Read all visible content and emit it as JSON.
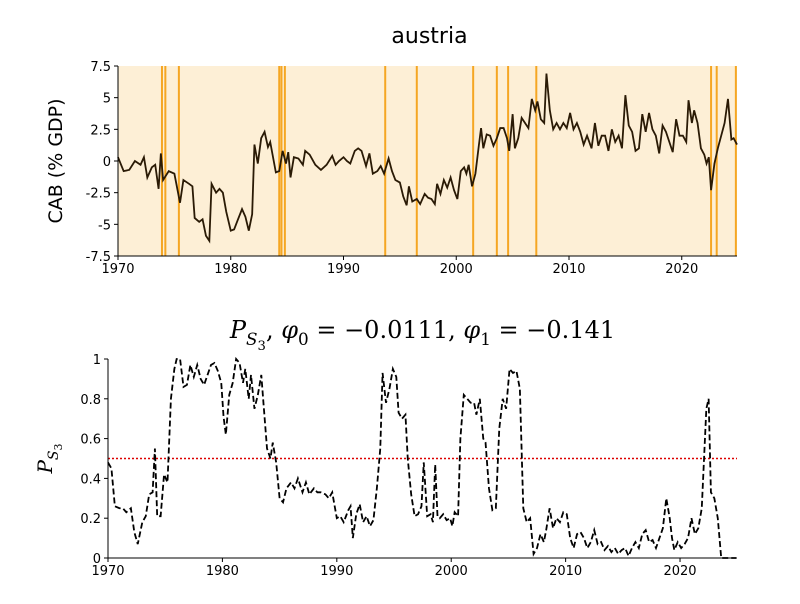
{
  "chart_data": [
    {
      "type": "line",
      "title": "austria",
      "ylabel": "CAB (% GDP)",
      "background": "#fdefd6",
      "vertical_lines": {
        "color": "#f5a623",
        "x": [
          1973.9,
          1974.2,
          1975.4,
          1984.3,
          1984.5,
          1984.8,
          1993.7,
          1996.5,
          2001.5,
          2003.6,
          2004.6,
          2007.1,
          2022.6,
          2023.1,
          2024.8
        ]
      },
      "xlim": [
        1970,
        2024.9
      ],
      "xticks": [
        1970,
        1980,
        1990,
        2000,
        2010,
        2020
      ],
      "ylim": [
        -7.5,
        7.5
      ],
      "yticks": [
        -7.5,
        -5,
        -2.5,
        0,
        2.5,
        5,
        7.5
      ],
      "x": [
        1970,
        1970.5,
        1971,
        1971.5,
        1972,
        1972.3,
        1972.6,
        1973,
        1973.3,
        1973.6,
        1973.8,
        1974,
        1974.5,
        1975,
        1975.5,
        1975.8,
        1976.3,
        1976.6,
        1976.8,
        1977.2,
        1977.5,
        1977.8,
        1978.1,
        1978.3,
        1978.7,
        1979,
        1979.3,
        1979.6,
        1980,
        1980.3,
        1980.6,
        1981,
        1981.3,
        1981.6,
        1981.9,
        1982.1,
        1982.4,
        1982.7,
        1983,
        1983.3,
        1983.5,
        1984,
        1984.3,
        1984.6,
        1984.9,
        1985.1,
        1985.3,
        1985.6,
        1986,
        1986.4,
        1986.6,
        1987,
        1987.5,
        1988,
        1988.5,
        1989,
        1989.3,
        1989.6,
        1990,
        1990.3,
        1990.6,
        1991,
        1991.3,
        1991.6,
        1992,
        1992.3,
        1992.6,
        1993,
        1993.3,
        1993.6,
        1994,
        1994.3,
        1994.6,
        1995,
        1995.3,
        1995.6,
        1995.8,
        1996.1,
        1996.5,
        1996.8,
        1997.2,
        1997.5,
        1997.8,
        1998.1,
        1998.3,
        1998.6,
        1998.9,
        1999.2,
        1999.5,
        1999.8,
        2000.1,
        2000.4,
        2000.7,
        2000.9,
        2001.1,
        2001.4,
        2001.7,
        2002,
        2002.2,
        2002.4,
        2002.7,
        2003,
        2003.3,
        2003.6,
        2003.9,
        2004.2,
        2004.5,
        2004.7,
        2005,
        2005.2,
        2005.5,
        2005.8,
        2006.1,
        2006.4,
        2006.7,
        2007,
        2007.2,
        2007.5,
        2007.8,
        2008,
        2008.3,
        2008.6,
        2008.9,
        2009.2,
        2009.5,
        2009.8,
        2010.1,
        2010.4,
        2010.7,
        2011,
        2011.3,
        2011.6,
        2012,
        2012.3,
        2012.6,
        2012.9,
        2013.2,
        2013.5,
        2013.8,
        2014.1,
        2014.4,
        2014.7,
        2015,
        2015.3,
        2015.6,
        2015.9,
        2016.2,
        2016.5,
        2016.8,
        2017.1,
        2017.4,
        2017.7,
        2018,
        2018.3,
        2018.6,
        2018.9,
        2019.2,
        2019.5,
        2019.8,
        2020.1,
        2020.4,
        2020.6,
        2020.9,
        2021.1,
        2021.4,
        2021.7,
        2022,
        2022.2,
        2022.4,
        2022.6,
        2022.9,
        2023.2,
        2023.5,
        2023.8,
        2024.1,
        2024.4,
        2024.6,
        2024.9
      ],
      "series": [
        {
          "color": "#2a1a05",
          "values": [
            0.3,
            -0.8,
            -0.7,
            0,
            -0.3,
            0.3,
            -1.3,
            -0.5,
            -0.3,
            -2.2,
            0.6,
            -1.5,
            -0.8,
            -1.0,
            -3.3,
            -1.5,
            -1.8,
            -2.0,
            -4.5,
            -4.8,
            -4.6,
            -5.9,
            -6.3,
            -1.8,
            -2.5,
            -2.2,
            -2.5,
            -4.0,
            -5.5,
            -5.4,
            -4.7,
            -3.8,
            -4.4,
            -5.5,
            -4.2,
            1.3,
            -0.2,
            1.8,
            2.3,
            1.1,
            1.5,
            -0.9,
            -0.8,
            0.8,
            -0.2,
            0.7,
            -1.3,
            0.3,
            0.2,
            -0.3,
            0.8,
            0.5,
            -0.3,
            -0.7,
            -0.3,
            0.4,
            -0.3,
            0,
            0.3,
            0,
            -0.2,
            0.8,
            1.0,
            0.8,
            -0.4,
            0.6,
            -1.0,
            -0.8,
            -0.4,
            -1.0,
            0.2,
            -0.8,
            -1.5,
            -1.7,
            -2.8,
            -3.5,
            -2.0,
            -3.2,
            -3.0,
            -3.4,
            -2.6,
            -2.9,
            -3.0,
            -3.4,
            -1.8,
            -2.6,
            -1.5,
            -2.1,
            -1.3,
            -2.3,
            -3.0,
            -0.8,
            -0.5,
            -1.0,
            -0.3,
            -2.0,
            -1.0,
            1.2,
            2.6,
            1.0,
            2.1,
            2.0,
            1.2,
            1.8,
            2.6,
            2.6,
            1.8,
            0.8,
            3.7,
            1.0,
            1.8,
            3.4,
            3.0,
            2.6,
            4.9,
            4.0,
            4.7,
            3.3,
            3.0,
            6.9,
            4.0,
            2.5,
            3.0,
            2.5,
            3.0,
            2.6,
            3.8,
            2.5,
            3.0,
            2.3,
            1.3,
            2.0,
            1.0,
            3.0,
            1.2,
            2.0,
            2.0,
            0.8,
            2.5,
            1.5,
            2.0,
            1.0,
            5.2,
            2.8,
            2.3,
            0.8,
            1.0,
            3.7,
            2.3,
            3.8,
            2.5,
            2.0,
            0.6,
            2.8,
            2.3,
            1.5,
            0.7,
            3.3,
            2.0,
            2.0,
            1.5,
            4.8,
            3.0,
            4.0,
            3.0,
            1.0,
            0.5,
            -0.2,
            0.3,
            -2.3,
            -0.2,
            1.0,
            2.0,
            3.0,
            4.9,
            1.7,
            1.8,
            1.3
          ]
        }
      ]
    },
    {
      "type": "line",
      "title": [
        {
          "text": "P",
          "level": 0,
          "italic": true
        },
        {
          "text": "S",
          "level": 1,
          "italic": true
        },
        {
          "text": "3",
          "level": 2
        },
        {
          "text": ", ",
          "level": 0
        },
        {
          "text": "φ",
          "level": 0,
          "italic": true
        },
        {
          "text": "0",
          "level": 1
        },
        {
          "text": " = −0.0111, ",
          "level": 0
        },
        {
          "text": "φ",
          "level": 0,
          "italic": true
        },
        {
          "text": "1",
          "level": 1
        },
        {
          "text": " = −0.141",
          "level": 0
        }
      ],
      "ylabel": [
        {
          "text": "P",
          "level": 0,
          "italic": true
        },
        {
          "text": "S",
          "level": 1,
          "italic": true
        },
        {
          "text": "3",
          "level": 2
        }
      ],
      "hline": {
        "value": 0.5,
        "color": "#dd0000"
      },
      "xlim": [
        1970,
        2024.98
      ],
      "xticks": [
        1970,
        1980,
        1990,
        2000,
        2010,
        2020
      ],
      "ylim": [
        0,
        1
      ],
      "yticks": [
        0,
        0.2,
        0.4,
        0.6,
        0.8,
        1
      ],
      "x": [
        1970,
        1970.3,
        1970.6,
        1971,
        1971.3,
        1971.6,
        1972,
        1972.3,
        1972.6,
        1973,
        1973.3,
        1973.6,
        1973.9,
        1974.1,
        1974.3,
        1974.6,
        1974.9,
        1975.2,
        1975.5,
        1975.8,
        1976,
        1976.3,
        1976.6,
        1976.9,
        1977.2,
        1977.5,
        1977.8,
        1978.1,
        1978.4,
        1978.7,
        1979,
        1979.3,
        1979.6,
        1979.9,
        1980.1,
        1980.3,
        1980.6,
        1980.9,
        1981.2,
        1981.5,
        1981.8,
        1982,
        1982.3,
        1982.5,
        1982.8,
        1983.1,
        1983.4,
        1983.6,
        1983.9,
        1984.2,
        1984.4,
        1984.7,
        1985,
        1985.3,
        1985.6,
        1986,
        1986.3,
        1986.6,
        1987,
        1987.3,
        1987.6,
        1988,
        1988.3,
        1988.6,
        1989,
        1989.3,
        1989.6,
        1990,
        1990.3,
        1990.6,
        1991,
        1991.2,
        1991.4,
        1991.7,
        1992,
        1992.3,
        1992.6,
        1992.9,
        1993.2,
        1993.5,
        1993.8,
        1994,
        1994.3,
        1994.6,
        1994.9,
        1995.2,
        1995.4,
        1995.7,
        1996,
        1996.2,
        1996.5,
        1996.8,
        1997.1,
        1997.4,
        1997.6,
        1997.9,
        1998.2,
        1998.4,
        1998.6,
        1998.8,
        1999,
        1999.3,
        1999.6,
        1999.9,
        2000.1,
        2000.3,
        2000.6,
        2000.8,
        2001.1,
        2001.4,
        2001.7,
        2002,
        2002.2,
        2002.5,
        2002.8,
        2003,
        2003.3,
        2003.6,
        2003.9,
        2004.2,
        2004.5,
        2004.8,
        2005.1,
        2005.4,
        2005.7,
        2006,
        2006.3,
        2006.6,
        2006.9,
        2007.2,
        2007.5,
        2007.8,
        2008.1,
        2008.3,
        2008.6,
        2008.9,
        2009.2,
        2009.5,
        2009.8,
        2010.1,
        2010.4,
        2010.7,
        2011,
        2011.3,
        2011.6,
        2011.9,
        2012.2,
        2012.5,
        2012.8,
        2013.1,
        2013.4,
        2013.7,
        2014,
        2014.3,
        2014.6,
        2014.9,
        2015.2,
        2015.5,
        2015.8,
        2016.1,
        2016.4,
        2016.7,
        2017,
        2017.3,
        2017.6,
        2017.9,
        2018.2,
        2018.5,
        2018.8,
        2019.1,
        2019.3,
        2019.5,
        2019.8,
        2020.1,
        2020.4,
        2020.7,
        2021,
        2021.3,
        2021.6,
        2021.9,
        2022.1,
        2022.3,
        2022.5,
        2022.7,
        2023,
        2023.3,
        2023.6,
        2024,
        2024.9
      ],
      "series": [
        {
          "color": "#000000",
          "dashed": true,
          "values": [
            0.48,
            0.45,
            0.26,
            0.25,
            0.25,
            0.23,
            0.25,
            0.13,
            0.07,
            0.18,
            0.21,
            0.32,
            0.33,
            0.55,
            0.21,
            0.21,
            0.42,
            0.38,
            0.8,
            0.95,
            1.0,
            1.0,
            0.86,
            0.87,
            0.97,
            0.91,
            0.97,
            0.9,
            0.87,
            0.92,
            0.97,
            0.98,
            0.94,
            0.88,
            0.71,
            0.62,
            0.82,
            0.88,
            1.0,
            0.98,
            0.88,
            0.95,
            0.8,
            0.92,
            0.75,
            0.82,
            0.92,
            0.77,
            0.55,
            0.5,
            0.58,
            0.48,
            0.3,
            0.28,
            0.35,
            0.38,
            0.35,
            0.4,
            0.33,
            0.38,
            0.32,
            0.35,
            0.33,
            0.33,
            0.32,
            0.3,
            0.33,
            0.2,
            0.21,
            0.18,
            0.24,
            0.26,
            0.1,
            0.22,
            0.27,
            0.18,
            0.21,
            0.16,
            0.19,
            0.35,
            0.55,
            0.93,
            0.78,
            0.85,
            0.95,
            0.91,
            0.73,
            0.7,
            0.72,
            0.5,
            0.32,
            0.21,
            0.22,
            0.26,
            0.48,
            0.21,
            0.22,
            0.18,
            0.47,
            0.21,
            0.2,
            0.22,
            0.19,
            0.2,
            0.16,
            0.23,
            0.21,
            0.6,
            0.82,
            0.8,
            0.78,
            0.78,
            0.72,
            0.8,
            0.6,
            0.58,
            0.35,
            0.24,
            0.25,
            0.65,
            0.8,
            0.75,
            0.95,
            0.93,
            0.94,
            0.85,
            0.25,
            0.18,
            0.2,
            0.02,
            0.05,
            0.12,
            0.08,
            0.14,
            0.25,
            0.15,
            0.2,
            0.18,
            0.23,
            0.22,
            0.1,
            0.05,
            0.12,
            0.13,
            0.1,
            0.05,
            0.08,
            0.14,
            0.07,
            0.08,
            0.04,
            0.06,
            0.03,
            0.05,
            0.02,
            0.04,
            0.05,
            0.01,
            0.05,
            0.08,
            0.05,
            0.12,
            0.14,
            0.08,
            0.09,
            0.05,
            0.1,
            0.15,
            0.3,
            0.2,
            0.1,
            0.04,
            0.08,
            0.05,
            0.07,
            0.1,
            0.2,
            0.12,
            0.15,
            0.25,
            0.5,
            0.75,
            0.8,
            0.33,
            0.3,
            0.2,
            0,
            0,
            0
          ]
        }
      ]
    }
  ]
}
